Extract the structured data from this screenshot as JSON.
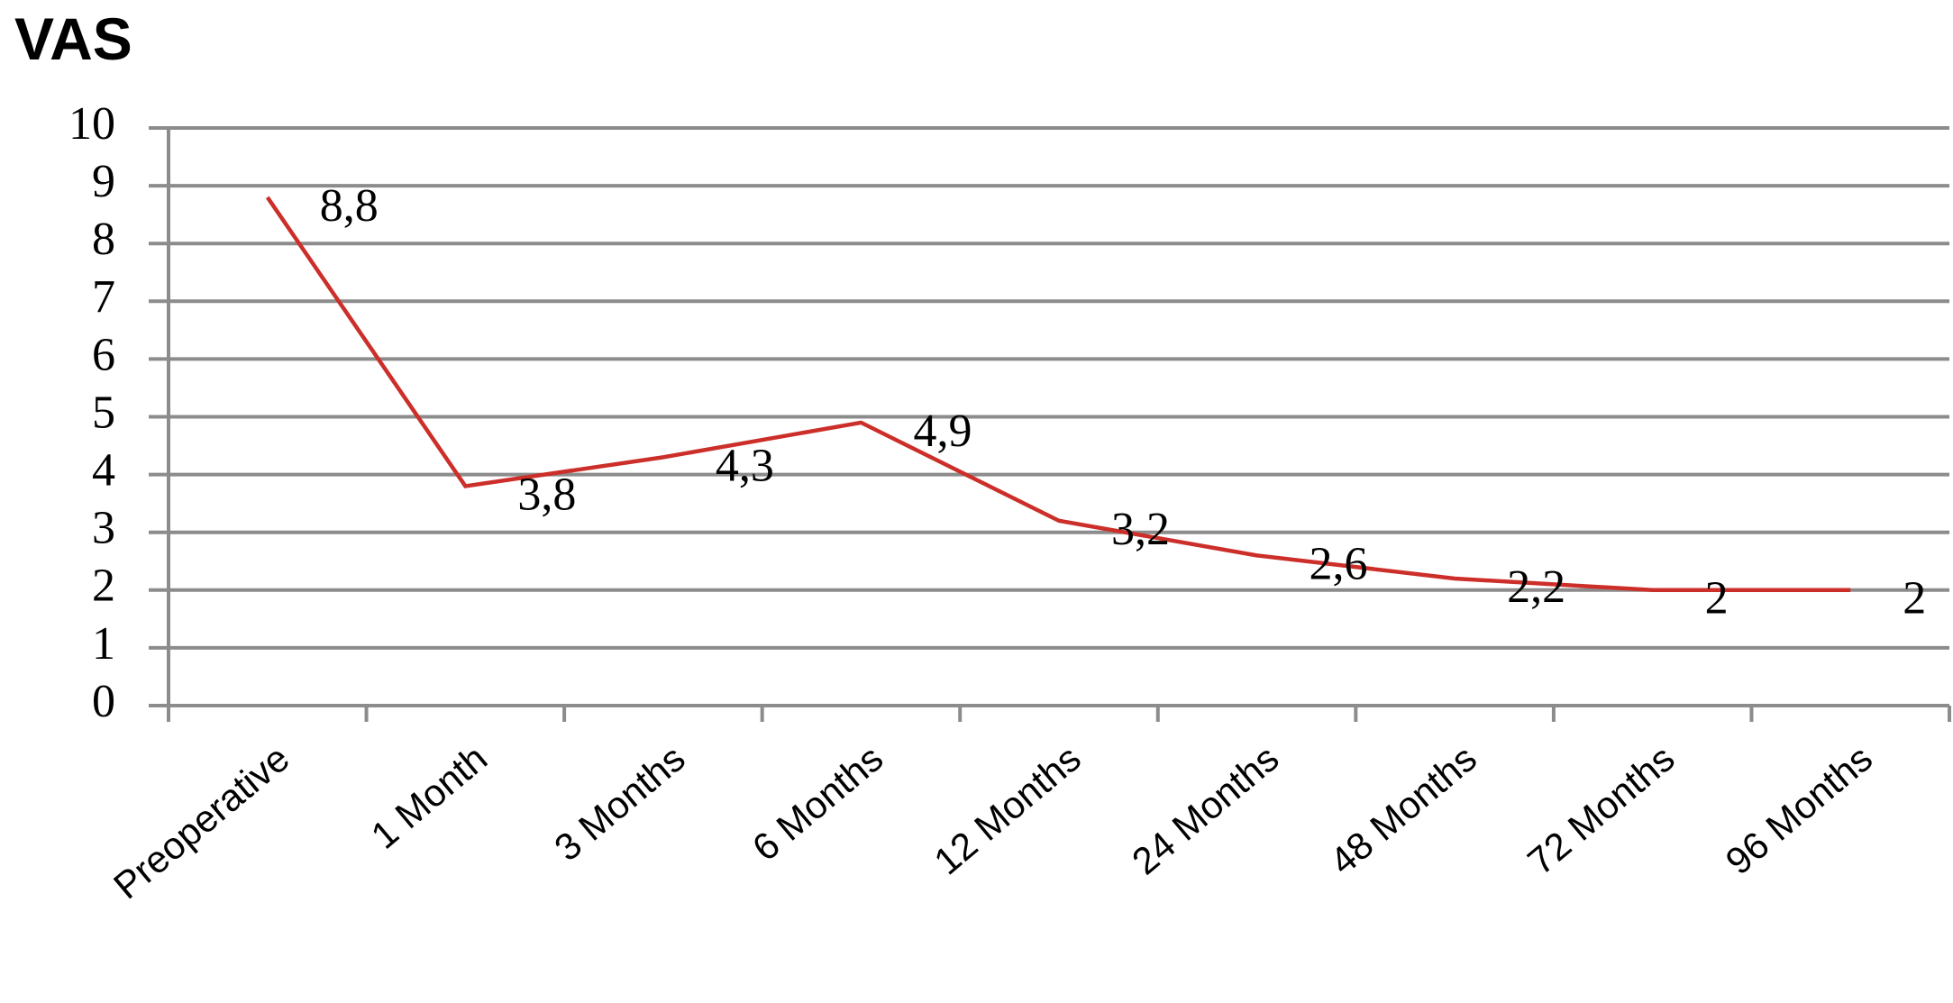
{
  "chart_data": {
    "type": "line",
    "title": "VAS",
    "categories": [
      "Preoperative",
      "1 Month",
      "3 Months",
      "6 Months",
      "12 Months",
      "24 Months",
      "48 Months",
      "72 Months",
      "96 Months"
    ],
    "values": [
      8.8,
      3.8,
      4.3,
      4.9,
      3.2,
      2.6,
      2.2,
      2,
      2
    ],
    "value_labels": [
      "8,8",
      "3,8",
      "4,3",
      "4,9",
      "3,2",
      "2,6",
      "2,2",
      "2",
      "2"
    ],
    "color": "#cc2f2a",
    "ylim": [
      0,
      10
    ],
    "yticks": [
      0,
      1,
      2,
      3,
      4,
      5,
      6,
      7,
      8,
      9,
      10
    ],
    "grid": true
  }
}
